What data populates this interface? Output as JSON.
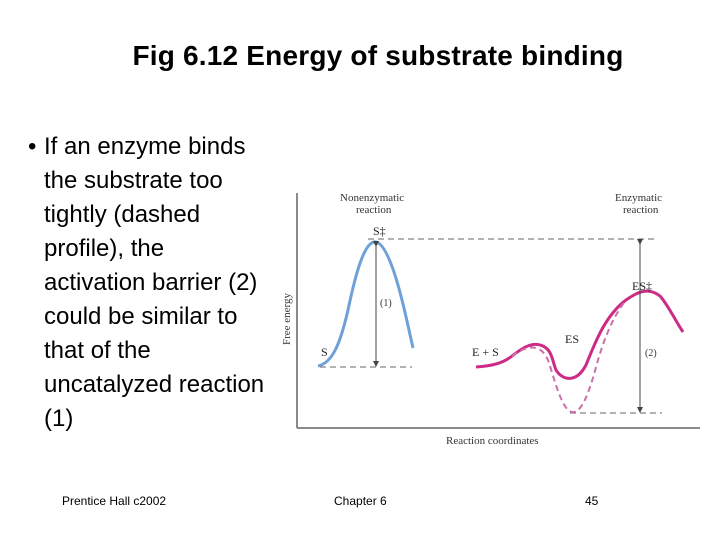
{
  "slide": {
    "title": "Fig 6.12  Energy of substrate binding",
    "bullet_symbol": "•",
    "bullet_text": "If an enzyme binds the substrate too tightly (dashed profile), the activation barrier (2) could be similar to that of the uncatalyzed reaction (1)"
  },
  "figure": {
    "label_nonenzymatic": [
      "Nonenzymatic",
      "reaction"
    ],
    "label_enzymatic": [
      "Enzymatic",
      "reaction"
    ],
    "label_s_ts": "S‡",
    "label_s": "S",
    "label_es_ts": "ES‡",
    "label_es": "ES",
    "label_e_s": "E + S",
    "label_barrier1": "(1)",
    "label_barrier2": "(2)",
    "y_axis_label": "Free energy",
    "x_axis_label": "Reaction coordinates",
    "colors": {
      "nonenzymatic_curve": "#6fa0d8",
      "enzymatic_curve": "#cc2b86",
      "dashed_curve": "#cc6fa8",
      "axis": "#8a8a8a",
      "guide_lines": "#666666"
    }
  },
  "footer": {
    "left": "Prentice Hall c2002",
    "center": "Chapter 6",
    "right": "45"
  }
}
